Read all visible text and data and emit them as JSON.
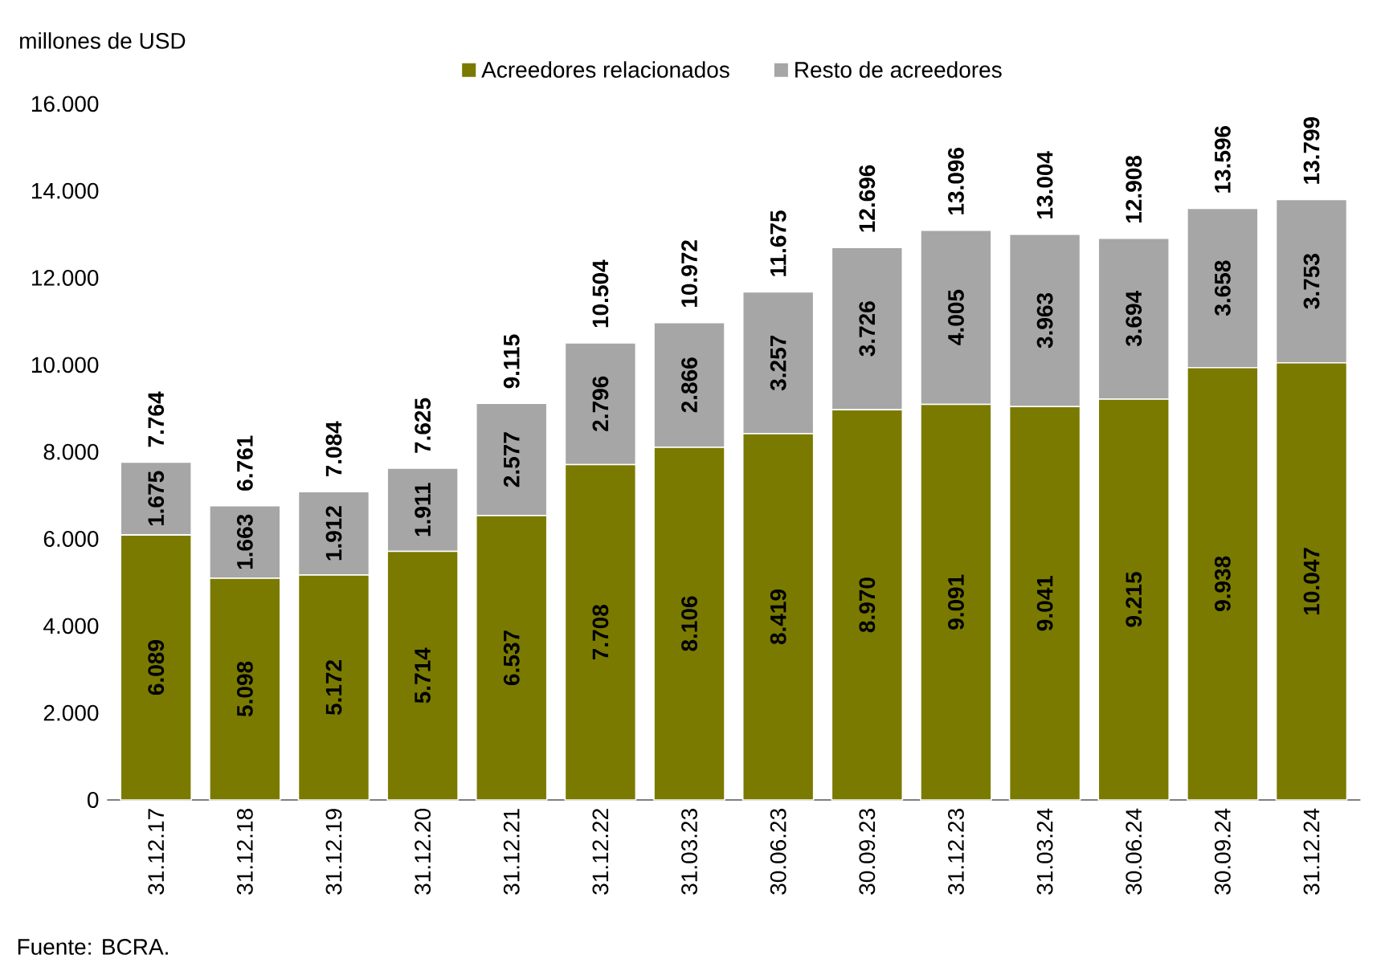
{
  "chart_data": {
    "type": "bar",
    "stacked": true,
    "ylabel": "millones de USD",
    "categories": [
      "31.12.17",
      "31.12.18",
      "31.12.19",
      "31.12.20",
      "31.12.21",
      "31.12.22",
      "31.03.23",
      "30.06.23",
      "30.09.23",
      "31.12.23",
      "31.03.24",
      "30.06.24",
      "30.09.24",
      "31.12.24"
    ],
    "series": [
      {
        "name": "Acreedores relacionados",
        "color": "#7a7a00",
        "values": [
          6089,
          5098,
          5172,
          5714,
          6537,
          7708,
          8106,
          8419,
          8970,
          9091,
          9041,
          9215,
          9938,
          10047
        ],
        "value_labels": [
          "6.089",
          "5.098",
          "5.172",
          "5.714",
          "6.537",
          "7.708",
          "8.106",
          "8.419",
          "8.970",
          "9.091",
          "9.041",
          "9.215",
          "9.938",
          "10.047"
        ]
      },
      {
        "name": "Resto de acreedores",
        "color": "#a6a6a6",
        "values": [
          1675,
          1663,
          1912,
          1911,
          2577,
          2796,
          2866,
          3257,
          3726,
          4005,
          3963,
          3694,
          3658,
          3753
        ],
        "value_labels": [
          "1.675",
          "1.663",
          "1.912",
          "1.911",
          "2.577",
          "2.796",
          "2.866",
          "3.257",
          "3.726",
          "4.005",
          "3.963",
          "3.694",
          "3.658",
          "3.753"
        ]
      }
    ],
    "totals": [
      "7.764",
      "6.761",
      "7.084",
      "7.625",
      "9.115",
      "10.504",
      "10.972",
      "11.675",
      "12.696",
      "13.096",
      "13.004",
      "12.908",
      "13.596",
      "13.799"
    ],
    "ylim": [
      0,
      16000
    ],
    "yticks": [
      {
        "value": 0,
        "label": "0"
      },
      {
        "value": 2000,
        "label": "2.000"
      },
      {
        "value": 4000,
        "label": "4.000"
      },
      {
        "value": 6000,
        "label": "6.000"
      },
      {
        "value": 8000,
        "label": "8.000"
      },
      {
        "value": 10000,
        "label": "10.000"
      },
      {
        "value": 12000,
        "label": "12.000"
      },
      {
        "value": 14000,
        "label": "14.000"
      },
      {
        "value": 16000,
        "label": "16.000"
      }
    ],
    "legend": "top",
    "annotations": [
      "Fuente: BCRA."
    ]
  }
}
